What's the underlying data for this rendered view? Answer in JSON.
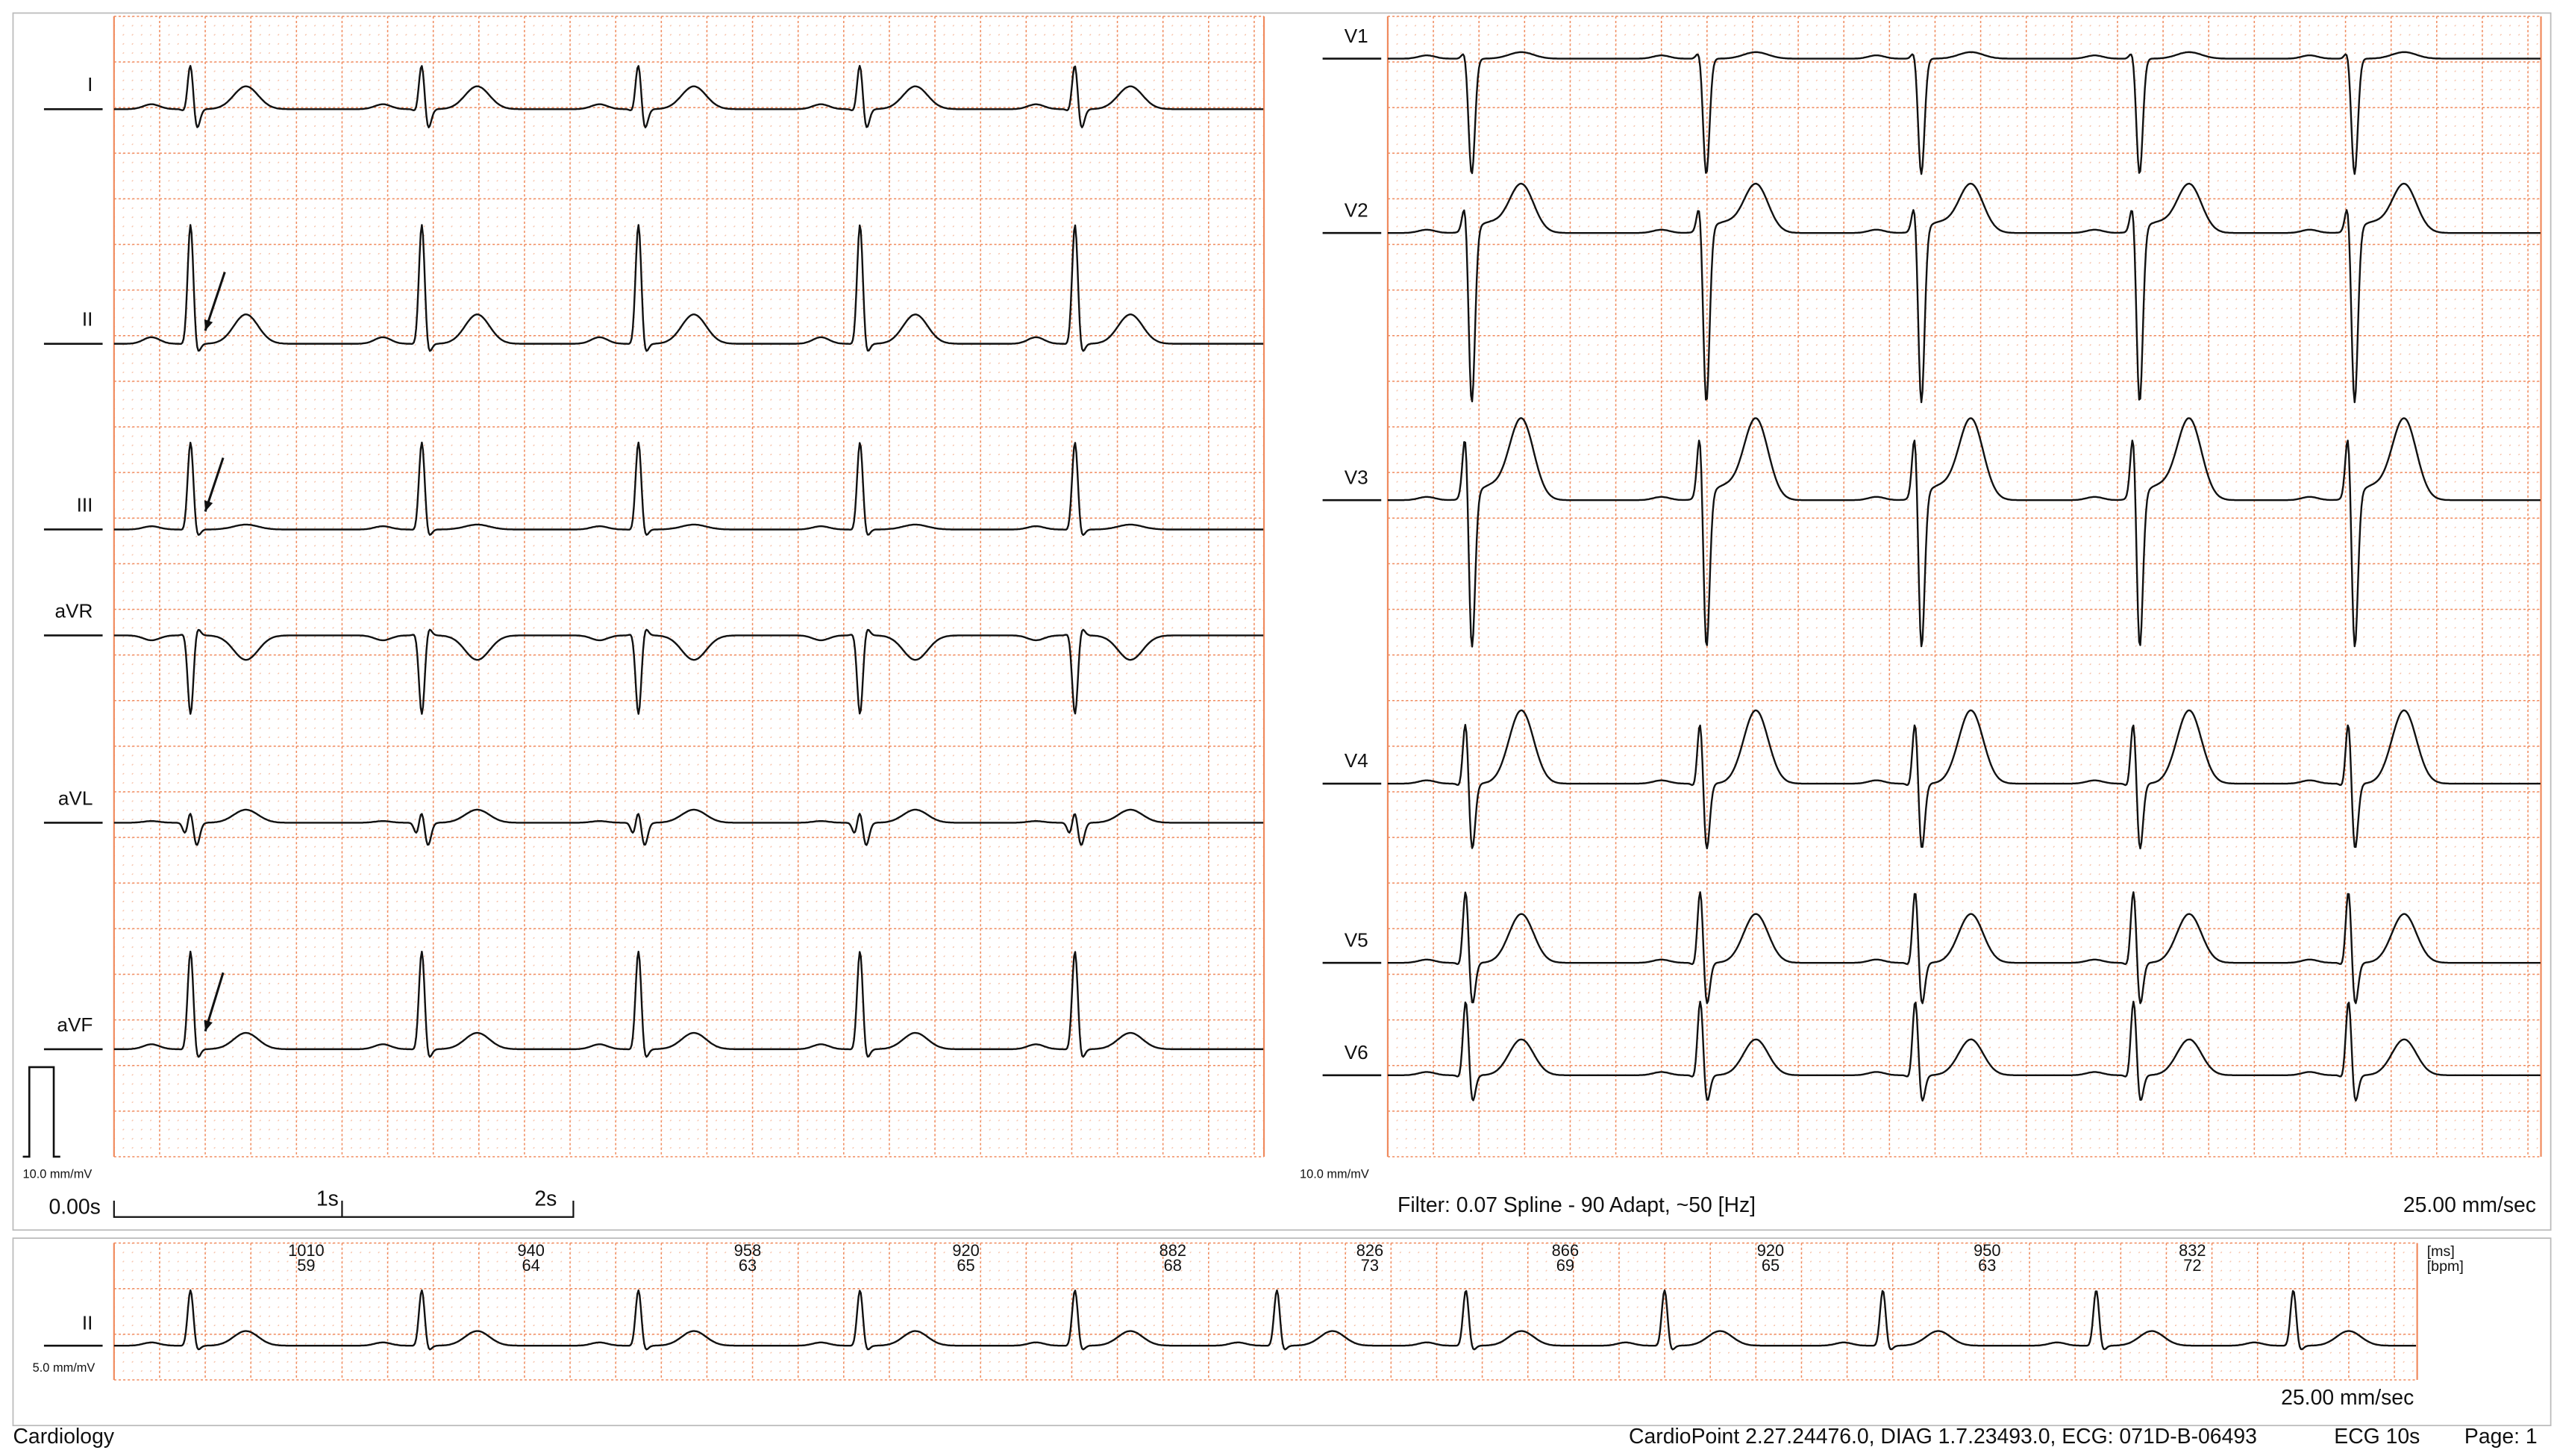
{
  "leads": {
    "limb": [
      "I",
      "II",
      "III",
      "aVR",
      "aVL",
      "aVF"
    ],
    "chest": [
      "V1",
      "V2",
      "V3",
      "V4",
      "V5",
      "V6"
    ]
  },
  "calibration": {
    "limb": "10.0 mm/mV",
    "chest": "10.0 mm/mV"
  },
  "time_scale": {
    "start": "0.00s",
    "marks": [
      "1s",
      "2s"
    ]
  },
  "filter": "Filter: 0.07 Spline - 90 Adapt, ~50 [Hz]",
  "speed": "25.00 mm/sec",
  "rhythm": {
    "lead": "II",
    "calibration": "5.0 mm/mV",
    "units": [
      "[ms]",
      "[bpm]"
    ],
    "intervals": [
      {
        "ms": 1010,
        "bpm": 59
      },
      {
        "ms": 940,
        "bpm": 64
      },
      {
        "ms": 958,
        "bpm": 63
      },
      {
        "ms": 920,
        "bpm": 65
      },
      {
        "ms": 882,
        "bpm": 68
      },
      {
        "ms": 826,
        "bpm": 73
      },
      {
        "ms": 866,
        "bpm": 69
      },
      {
        "ms": 920,
        "bpm": 65
      },
      {
        "ms": 950,
        "bpm": 63
      },
      {
        "ms": 832,
        "bpm": 72
      }
    ],
    "speed": "25.00 mm/sec"
  },
  "footer": {
    "left": "Cardiology",
    "info": "CardioPoint 2.27.24476.0, DIAG 1.7.23493.0, ECG: 071D-B-06493",
    "duration": "ECG 10s",
    "page": "Page: 1"
  }
}
